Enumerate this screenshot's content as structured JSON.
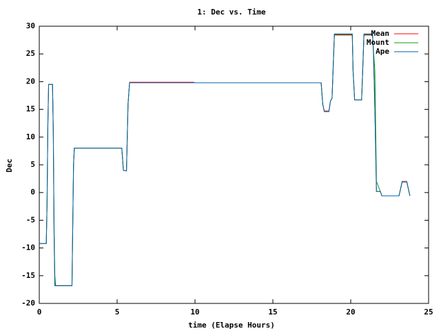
{
  "chart_data": {
    "type": "line",
    "title": "1: Dec vs. Time",
    "x_label": "time (Elapse Hours)",
    "y_label": "Dec",
    "x": [
      0,
      0.45,
      0.5,
      0.55,
      0.6,
      0.85,
      0.9,
      0.95,
      1.0,
      1.05,
      2.1,
      2.2,
      2.25,
      5.3,
      5.4,
      5.6,
      5.7,
      5.8,
      9.9,
      10.0,
      18.1,
      18.2,
      18.3,
      18.6,
      18.7,
      18.8,
      18.95,
      20.1,
      20.15,
      20.25,
      20.7,
      20.85,
      21.4,
      21.45,
      21.55,
      21.65,
      21.9,
      22.0,
      23.1,
      23.3,
      23.6,
      23.8
    ],
    "series": [
      {
        "name": "Mean",
        "color": "#ff0000",
        "values": [
          -9.2,
          -9.2,
          -2,
          12,
          19.5,
          19.5,
          11,
          -7.5,
          -16.8,
          -16.8,
          -16.8,
          5,
          8,
          8,
          4,
          3.9,
          16,
          19.9,
          19.9,
          19.8,
          19.8,
          16,
          14.6,
          14.6,
          16.5,
          17,
          28.4,
          28.4,
          22,
          16.7,
          16.7,
          28.4,
          28.4,
          26,
          15,
          0.2,
          0.2,
          -0.6,
          -0.6,
          2.0,
          2.0,
          -0.6
        ]
      },
      {
        "name": "Mount",
        "color": "#00a000",
        "values": [
          -9.2,
          -9.2,
          -2,
          12,
          19.5,
          19.5,
          11,
          -6,
          -15,
          -16.8,
          -16.8,
          5,
          8,
          8,
          4,
          3.9,
          16,
          19.8,
          19.8,
          19.8,
          19.8,
          16,
          14.7,
          14.7,
          16.5,
          17,
          28.5,
          28.5,
          22,
          16.7,
          16.7,
          28.5,
          28.5,
          26,
          22,
          2,
          0.2,
          -0.6,
          -0.6,
          1.9,
          1.9,
          -0.6
        ]
      },
      {
        "name": "Ape",
        "color": "#0060ad",
        "values": [
          -9.2,
          -9.2,
          -2,
          12,
          19.5,
          19.5,
          11,
          -7.5,
          -16.8,
          -16.8,
          -16.8,
          5,
          8,
          8,
          4,
          3.9,
          16,
          19.8,
          19.8,
          19.8,
          19.8,
          16,
          14.7,
          14.7,
          16.5,
          17,
          28.6,
          28.6,
          22,
          16.7,
          16.7,
          28.6,
          28.6,
          26,
          15,
          0.2,
          0.2,
          -0.6,
          -0.6,
          1.9,
          1.9,
          -0.6
        ]
      }
    ],
    "xlim": [
      0,
      25
    ],
    "xticks": [
      0,
      5,
      10,
      15,
      20,
      25
    ],
    "ylim": [
      -20,
      30
    ],
    "yticks": [
      -20,
      -15,
      -10,
      -5,
      0,
      5,
      10,
      15,
      20,
      25,
      30
    ],
    "grid": false,
    "legend": "top-right"
  }
}
